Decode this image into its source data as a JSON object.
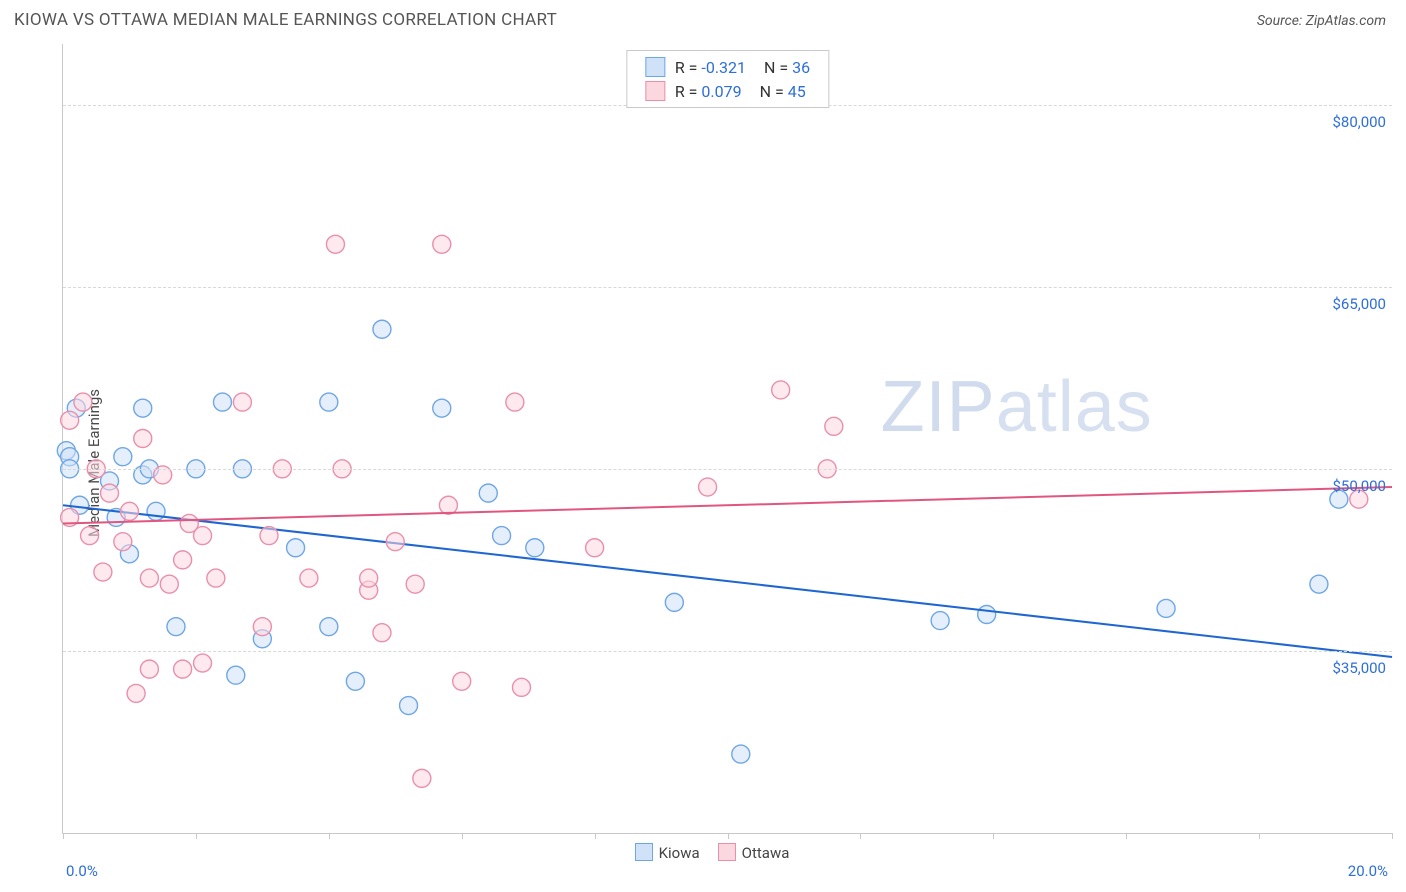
{
  "title": "KIOWA VS OTTAWA MEDIAN MALE EARNINGS CORRELATION CHART",
  "source_label": "Source: ZipAtlas.com",
  "watermark_a": "ZIP",
  "watermark_b": "atlas",
  "chart": {
    "type": "scatter",
    "ylabel": "Median Male Earnings",
    "xlim": [
      0,
      20
    ],
    "ylim": [
      20000,
      85000
    ],
    "x_end_labels": [
      "0.0%",
      "20.0%"
    ],
    "xticks": [
      0,
      2,
      4,
      6,
      8,
      10,
      12,
      14,
      16,
      18,
      20
    ],
    "y_gridlines": [
      {
        "value": 35000,
        "label": "$35,000"
      },
      {
        "value": 50000,
        "label": "$50,000"
      },
      {
        "value": 65000,
        "label": "$65,000"
      },
      {
        "value": 80000,
        "label": "$80,000"
      }
    ],
    "series": [
      {
        "name": "Kiowa",
        "r": -0.321,
        "n": 36,
        "fill": "#cfe2f8",
        "stroke": "#6ea6e6",
        "line_color": "#1f66d1",
        "trend": {
          "y_at_xmin": 47000,
          "y_at_xmax": 34500
        },
        "points": [
          [
            0.05,
            51500
          ],
          [
            0.1,
            51000
          ],
          [
            0.1,
            50000
          ],
          [
            0.2,
            55000
          ],
          [
            0.25,
            47000
          ],
          [
            0.7,
            49000
          ],
          [
            0.8,
            46000
          ],
          [
            0.9,
            51000
          ],
          [
            1.0,
            43000
          ],
          [
            1.2,
            55000
          ],
          [
            1.2,
            49500
          ],
          [
            1.3,
            50000
          ],
          [
            1.4,
            46500
          ],
          [
            1.7,
            37000
          ],
          [
            2.0,
            50000
          ],
          [
            2.4,
            55500
          ],
          [
            2.7,
            50000
          ],
          [
            2.6,
            33000
          ],
          [
            3.0,
            36000
          ],
          [
            3.5,
            43500
          ],
          [
            4.0,
            55500
          ],
          [
            4.0,
            37000
          ],
          [
            4.4,
            32500
          ],
          [
            4.8,
            61500
          ],
          [
            5.2,
            30500
          ],
          [
            5.7,
            55000
          ],
          [
            6.4,
            48000
          ],
          [
            6.6,
            44500
          ],
          [
            7.1,
            43500
          ],
          [
            9.2,
            39000
          ],
          [
            10.2,
            26500
          ],
          [
            13.2,
            37500
          ],
          [
            13.9,
            38000
          ],
          [
            16.6,
            38500
          ],
          [
            18.9,
            40500
          ],
          [
            19.2,
            47500
          ]
        ]
      },
      {
        "name": "Ottawa",
        "r": 0.079,
        "n": 45,
        "fill": "#fbd7e0",
        "stroke": "#ea8fab",
        "line_color": "#e0567f",
        "trend": {
          "y_at_xmin": 45500,
          "y_at_xmax": 48500
        },
        "points": [
          [
            0.1,
            54000
          ],
          [
            0.1,
            46000
          ],
          [
            0.3,
            55500
          ],
          [
            0.4,
            44500
          ],
          [
            0.5,
            50000
          ],
          [
            0.6,
            41500
          ],
          [
            0.7,
            48000
          ],
          [
            0.9,
            44000
          ],
          [
            1.0,
            46500
          ],
          [
            1.1,
            31500
          ],
          [
            1.2,
            52500
          ],
          [
            1.3,
            41000
          ],
          [
            1.3,
            33500
          ],
          [
            1.5,
            49500
          ],
          [
            1.6,
            40500
          ],
          [
            1.8,
            42500
          ],
          [
            1.8,
            33500
          ],
          [
            1.9,
            45500
          ],
          [
            2.1,
            44500
          ],
          [
            2.1,
            34000
          ],
          [
            2.3,
            41000
          ],
          [
            2.7,
            55500
          ],
          [
            3.0,
            37000
          ],
          [
            3.1,
            44500
          ],
          [
            3.3,
            50000
          ],
          [
            3.7,
            41000
          ],
          [
            4.1,
            68500
          ],
          [
            4.2,
            50000
          ],
          [
            4.6,
            40000
          ],
          [
            4.6,
            41000
          ],
          [
            4.8,
            36500
          ],
          [
            5.0,
            44000
          ],
          [
            5.3,
            40500
          ],
          [
            5.4,
            24500
          ],
          [
            5.7,
            68500
          ],
          [
            5.8,
            47000
          ],
          [
            6.0,
            32500
          ],
          [
            6.8,
            55500
          ],
          [
            6.9,
            32000
          ],
          [
            8.0,
            43500
          ],
          [
            9.7,
            48500
          ],
          [
            10.8,
            56500
          ],
          [
            11.5,
            50000
          ],
          [
            11.6,
            53500
          ],
          [
            19.5,
            47500
          ]
        ]
      }
    ],
    "marker_radius": 9,
    "marker_stroke_width": 1.4,
    "marker_fill_opacity": 0.55,
    "trend_line_width": 2,
    "background_color": "#ffffff",
    "grid_color": "#d8d8d8",
    "axis_color": "#c9c9c9",
    "legend_title_color": "#333333",
    "value_color": "#2e6fd9"
  },
  "bottom_legend": [
    {
      "label": "Kiowa",
      "fill": "#cfe2f8",
      "stroke": "#6ea6e6"
    },
    {
      "label": "Ottawa",
      "fill": "#fbd7e0",
      "stroke": "#ea8fab"
    }
  ]
}
